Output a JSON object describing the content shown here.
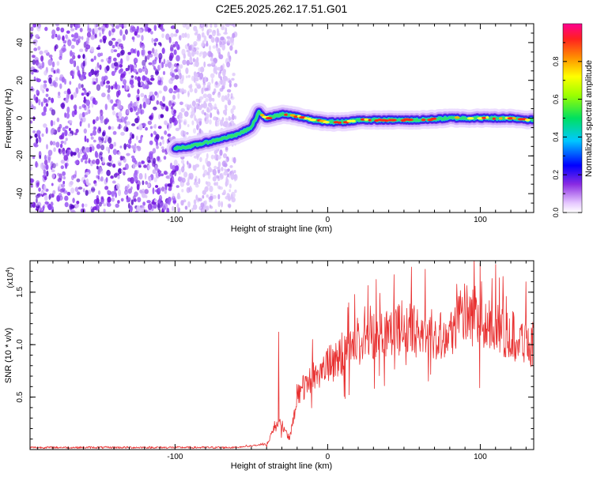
{
  "title": "C2E5.2025.262.17.51.G01",
  "chart_data": [
    {
      "type": "heatmap",
      "name": "spectrogram",
      "xlabel": "Height of straight line (km)",
      "ylabel": "Frequency (Hz)",
      "xlim": [
        -195,
        135
      ],
      "ylim": [
        -50,
        50
      ],
      "xticks": [
        -100,
        0,
        100
      ],
      "yticks": [
        -40,
        -20,
        0,
        20,
        40
      ],
      "trace": {
        "x": [
          -100,
          -90,
          -80,
          -70,
          -60,
          -50,
          -45,
          -40,
          -30,
          -20,
          -10,
          0,
          10,
          20,
          40,
          60,
          80,
          100,
          120,
          135
        ],
        "y": [
          -16,
          -15,
          -13,
          -11,
          -9,
          -5,
          3,
          0,
          2,
          1,
          -1,
          -2,
          -2,
          -1,
          -1,
          -1,
          0,
          0,
          0,
          -1
        ]
      },
      "noise_region_x": [
        -195,
        -60
      ],
      "colorbar": {
        "label": "Normalized spectral amplitude",
        "ticks": [
          0.0,
          0.2,
          0.4,
          0.6,
          0.8
        ],
        "tick_labels": [
          "0.0",
          "0.2",
          "0.4",
          "0.6",
          "0.8"
        ],
        "range": [
          0,
          1
        ]
      }
    },
    {
      "type": "line",
      "name": "snr",
      "xlabel": "Height of straight line (km)",
      "ylabel": "SNR (10 * v/v)",
      "scale_label": "(x10",
      "scale_exp": "4",
      "scale_close": ")",
      "xlim": [
        -195,
        135
      ],
      "ylim": [
        0,
        1.8
      ],
      "xticks": [
        -100,
        0,
        100
      ],
      "yticks": [
        0.5,
        1.0,
        1.5
      ],
      "ytick_labels": [
        "0.5",
        "1.0",
        "1.5"
      ],
      "color": "#e83030",
      "profile": {
        "x": [
          -195,
          -60,
          -40,
          -35,
          -30,
          -25,
          -20,
          -15,
          -10,
          0,
          10,
          20,
          30,
          40,
          50,
          60,
          70,
          80,
          85,
          90,
          100,
          110,
          120,
          135
        ],
        "y": [
          0.02,
          0.02,
          0.05,
          0.2,
          0.25,
          0.1,
          0.5,
          0.6,
          0.7,
          0.8,
          0.9,
          1.0,
          1.1,
          1.15,
          1.15,
          1.12,
          1.1,
          1.1,
          1.25,
          1.3,
          1.2,
          1.15,
          1.1,
          1.0
        ]
      },
      "peaks": [
        {
          "x": -32,
          "y": 1.12
        },
        {
          "x": -10,
          "y": 1.05
        },
        {
          "x": 8,
          "y": 1.05
        },
        {
          "x": 45,
          "y": 1.3
        },
        {
          "x": 100,
          "y": 1.78
        },
        {
          "x": 115,
          "y": 1.65
        },
        {
          "x": 130,
          "y": 1.6
        }
      ]
    }
  ]
}
